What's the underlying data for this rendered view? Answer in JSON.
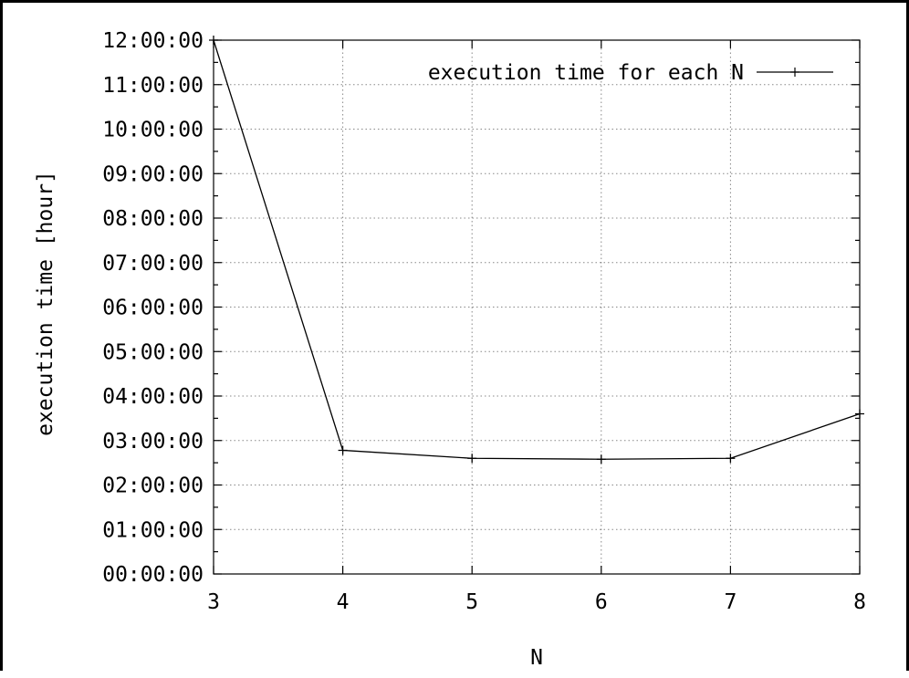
{
  "chart_data": {
    "type": "line",
    "title": "",
    "xlabel": "N",
    "ylabel": "execution time [hour]",
    "x_ticks": [
      "3",
      "4",
      "5",
      "6",
      "7",
      "8"
    ],
    "y_ticks": [
      "00:00:00",
      "01:00:00",
      "02:00:00",
      "03:00:00",
      "04:00:00",
      "05:00:00",
      "06:00:00",
      "07:00:00",
      "08:00:00",
      "09:00:00",
      "10:00:00",
      "11:00:00",
      "12:00:00"
    ],
    "xlim": [
      3,
      8
    ],
    "ylim_hours": [
      0,
      12
    ],
    "grid": true,
    "legend_position": "top-right",
    "series": [
      {
        "name": "execution time for each N",
        "x": [
          3,
          4,
          5,
          6,
          7,
          8
        ],
        "y_hours": [
          12.0,
          2.78,
          2.6,
          2.58,
          2.6,
          3.6
        ],
        "color": "#000000",
        "marker": "plus"
      }
    ]
  }
}
